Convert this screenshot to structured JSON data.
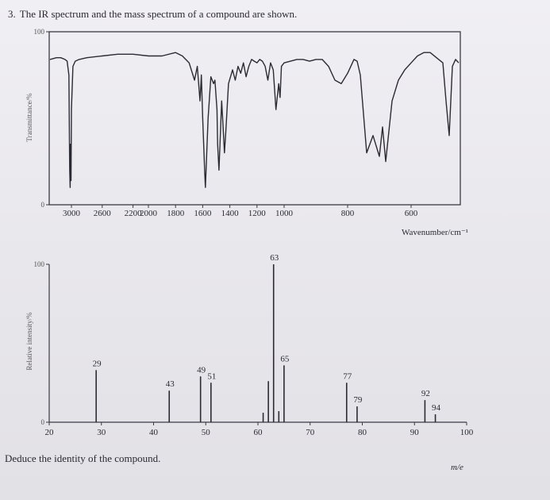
{
  "question": {
    "number": "3.",
    "text": "The IR spectrum and the mass spectrum of a compound are shown."
  },
  "footer": {
    "text": "Deduce the identity of the compound."
  },
  "chart_data": [
    {
      "type": "line",
      "ylabel": "Transmittance/%",
      "xlabel": "Wavenumber/cm⁻¹",
      "y_tick_labels": [
        "100",
        "0"
      ],
      "ylim": [
        0,
        100
      ],
      "x_tick_labels": [
        "3000",
        "2600",
        "2200",
        "2000",
        "1800",
        "1600",
        "1400",
        "1200",
        "1000",
        "800",
        "600"
      ],
      "x_reversed": true,
      "grid": false,
      "x": [
        4000,
        3700,
        3500,
        3300,
        3200,
        3120,
        3080,
        3060,
        3040,
        3020,
        3000,
        2980,
        2950,
        2900,
        2800,
        2600,
        2400,
        2200,
        2000,
        1900,
        1800,
        1750,
        1700,
        1660,
        1640,
        1620,
        1610,
        1600,
        1585,
        1580,
        1560,
        1540,
        1520,
        1510,
        1495,
        1490,
        1480,
        1470,
        1460,
        1450,
        1440,
        1430,
        1410,
        1380,
        1360,
        1340,
        1320,
        1300,
        1280,
        1260,
        1240,
        1220,
        1200,
        1180,
        1160,
        1140,
        1120,
        1100,
        1080,
        1060,
        1040,
        1030,
        1020,
        1000,
        980,
        960,
        940,
        920,
        900,
        880,
        860,
        840,
        820,
        800,
        780,
        770,
        760,
        740,
        720,
        700,
        690,
        680,
        660,
        640,
        620,
        600,
        580,
        560,
        540,
        520,
        500,
        490,
        480,
        470,
        460,
        450
      ],
      "y": [
        84,
        85,
        85,
        84,
        83,
        75,
        20,
        10,
        35,
        14,
        55,
        80,
        83,
        84,
        85,
        86,
        87,
        87,
        86,
        86,
        88,
        86,
        82,
        72,
        80,
        60,
        75,
        50,
        18,
        10,
        50,
        74,
        70,
        72,
        55,
        35,
        20,
        40,
        60,
        45,
        30,
        42,
        70,
        78,
        72,
        80,
        76,
        82,
        74,
        80,
        84,
        83,
        82,
        84,
        83,
        80,
        72,
        82,
        78,
        55,
        70,
        62,
        80,
        82,
        83,
        84,
        84,
        83,
        84,
        84,
        80,
        72,
        70,
        76,
        84,
        83,
        75,
        30,
        40,
        28,
        45,
        25,
        60,
        72,
        78,
        82,
        86,
        88,
        88,
        85,
        82,
        60,
        40,
        80,
        84,
        82
      ]
    },
    {
      "type": "bar",
      "ylabel": "Relative intensity/%",
      "xlabel": "m/e",
      "y_tick_labels": [
        "100",
        "0"
      ],
      "ylim": [
        0,
        100
      ],
      "xlim": [
        20,
        100
      ],
      "x_ticks": [
        20,
        30,
        40,
        50,
        60,
        70,
        80,
        90,
        100
      ],
      "grid": false,
      "peaks": [
        {
          "mz": 29,
          "intensity": 33,
          "label": "29"
        },
        {
          "mz": 43,
          "intensity": 20,
          "label": "43"
        },
        {
          "mz": 49,
          "intensity": 29,
          "label": "49"
        },
        {
          "mz": 51,
          "intensity": 25,
          "label": "51"
        },
        {
          "mz": 61,
          "intensity": 6,
          "label": ""
        },
        {
          "mz": 62,
          "intensity": 26,
          "label": ""
        },
        {
          "mz": 63,
          "intensity": 100,
          "label": "63"
        },
        {
          "mz": 64,
          "intensity": 7,
          "label": ""
        },
        {
          "mz": 65,
          "intensity": 36,
          "label": "65"
        },
        {
          "mz": 77,
          "intensity": 25,
          "label": "77"
        },
        {
          "mz": 79,
          "intensity": 10,
          "label": "79"
        },
        {
          "mz": 92,
          "intensity": 14,
          "label": "92"
        },
        {
          "mz": 94,
          "intensity": 5,
          "label": "94"
        }
      ]
    }
  ]
}
